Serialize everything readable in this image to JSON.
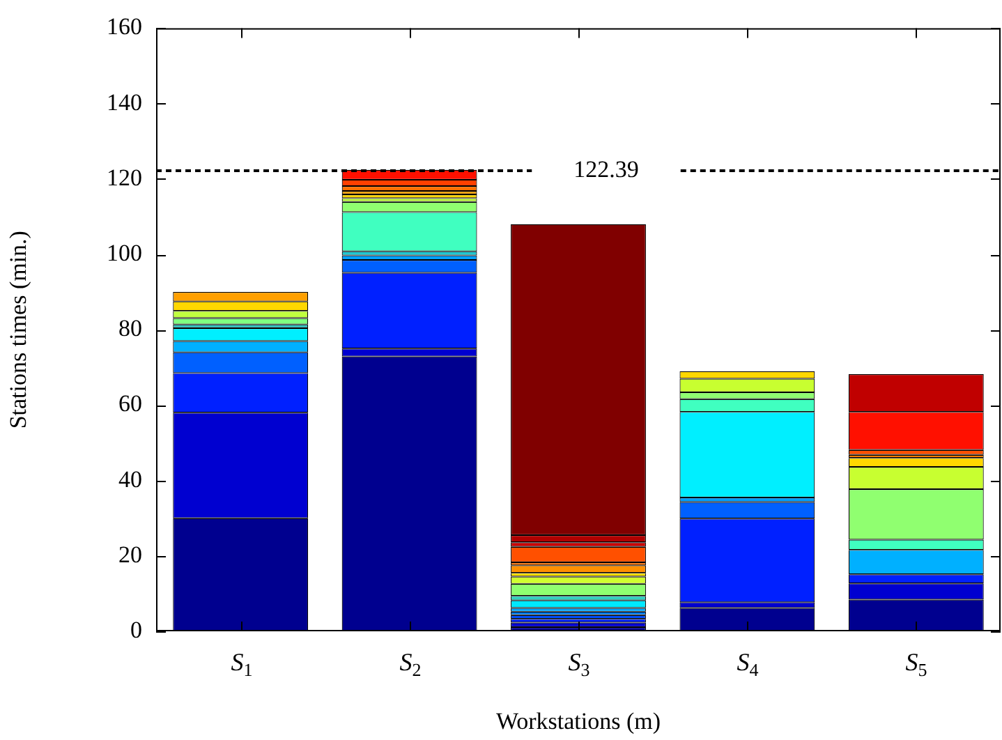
{
  "chart_data": {
    "type": "bar",
    "stacked": true,
    "xlabel": "Workstations (m)",
    "ylabel": "Stations times (min.)",
    "categories": [
      "S$_{1}$",
      "S$_{2}$",
      "S$_{3}$",
      "S$_{4}$",
      "S$_{5}$"
    ],
    "ylim": [
      0,
      160
    ],
    "yticks": [
      0,
      20,
      40,
      60,
      80,
      100,
      120,
      140,
      160
    ],
    "grid": false,
    "legend": false,
    "ref_lines": [
      {
        "axis": "y",
        "value": 122.39,
        "label": "122.39",
        "color": "#000000",
        "line_style": "dashed"
      }
    ],
    "series": [
      {
        "values": [
          30,
          72.9,
          1.1,
          6.2,
          8.4
        ],
        "colors": [
          "#00008f",
          "#00008f",
          "#00008f",
          "#00008f",
          "#00008f"
        ]
      },
      {
        "values": [
          28,
          2.1,
          1.2,
          1.5,
          4.3
        ],
        "colors": [
          "#0000d0",
          "#0000d0",
          "#0000d0",
          "#0000d0",
          "#0000d0"
        ]
      },
      {
        "values": [
          10.5,
          20.1,
          1.0,
          22.2,
          2.4
        ],
        "colors": [
          "#0020ff",
          "#0020ff",
          "#0020ff",
          "#0020ff",
          "#0020ff"
        ]
      },
      {
        "values": [
          5.5,
          3.4,
          1.0,
          4.4,
          6.5
        ],
        "colors": [
          "#0060ff",
          "#0060ff",
          "#0050ff",
          "#0060ff",
          "#00b0ff"
        ]
      },
      {
        "values": [
          3,
          1.2,
          0.9,
          1.2,
          2.7
        ],
        "colors": [
          "#00b0ff",
          "#00a0ff",
          "#0080ff",
          "#00a0ff",
          "#40ffc0"
        ]
      },
      {
        "values": [
          3.4,
          1.1,
          1.0,
          22.7,
          13.4
        ],
        "colors": [
          "#00efff",
          "#20c8d0",
          "#00a8ff",
          "#00efff",
          "#90ff70"
        ]
      },
      {
        "values": [
          1.0,
          10.4,
          2.0,
          3.4,
          5.9
        ],
        "colors": [
          "#30c0c0",
          "#40ffc0",
          "#00e8ff",
          "#40ffc0",
          "#c8ff30"
        ]
      },
      {
        "values": [
          1.7,
          2.7,
          1.2,
          1.8,
          2.4
        ],
        "colors": [
          "#80ff80",
          "#90ff70",
          "#30d0c0",
          "#90ff70",
          "#ffd700"
        ]
      },
      {
        "values": [
          1.9,
          1.0,
          3.2,
          3.6,
          0.8
        ],
        "colors": [
          "#c0ff40",
          "#c0ff40",
          "#90ff70",
          "#c8ff30",
          "#ff8000"
        ]
      },
      {
        "values": [
          2.5,
          1.0,
          1.9,
          2.0,
          1.3
        ],
        "colors": [
          "#ffd700",
          "#ffd700",
          "#d0ff30",
          "#ffd700",
          "#ff5000"
        ]
      },
      {
        "values": [
          2.5,
          0.9,
          1.0,
          null,
          10.1
        ],
        "colors": [
          "#ffa000",
          "#ffa000",
          "#ffe000",
          null,
          "#ff1000"
        ]
      },
      {
        "values": [
          null,
          1.3,
          2.0,
          null,
          10.0
        ],
        "colors": [
          null,
          "#ff7000",
          "#ff9000",
          null,
          "#c00000"
        ]
      },
      {
        "values": [
          null,
          1.7,
          0.8,
          null,
          null
        ],
        "colors": [
          null,
          "#ff4000",
          "#ff7000",
          null,
          null
        ]
      },
      {
        "values": [
          null,
          2.6,
          4.1,
          null,
          null
        ],
        "colors": [
          null,
          "#ff1000",
          "#ff5000",
          null,
          null
        ]
      },
      {
        "values": [
          null,
          null,
          1.2,
          null,
          null
        ],
        "colors": [
          null,
          null,
          "#cc0000",
          null,
          null
        ]
      },
      {
        "values": [
          null,
          null,
          1.9,
          null,
          null
        ],
        "colors": [
          null,
          null,
          "#b00000",
          null,
          null
        ]
      },
      {
        "values": [
          null,
          null,
          82.5,
          null,
          null
        ],
        "colors": [
          null,
          null,
          "#800000",
          null,
          null
        ]
      }
    ]
  }
}
